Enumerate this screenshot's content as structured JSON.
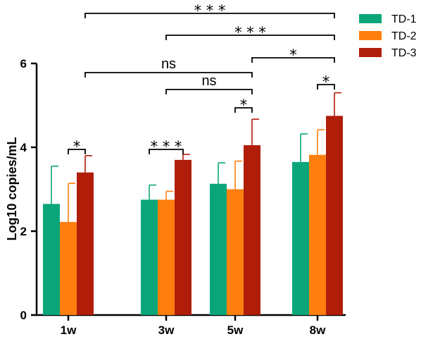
{
  "chart_data": {
    "type": "bar",
    "title": "",
    "xlabel": "",
    "ylabel": "Log10 copies/mL",
    "ylim": [
      0,
      6
    ],
    "yticks": [
      "0",
      "2",
      "4",
      "6"
    ],
    "categories": [
      "1w",
      "3w",
      "5w",
      "8w"
    ],
    "series": [
      {
        "name": "TD-1",
        "color": "#0aa67a",
        "values": [
          2.65,
          2.75,
          3.13,
          3.65
        ],
        "errors": [
          0.9,
          0.35,
          0.5,
          0.67
        ]
      },
      {
        "name": "TD-2",
        "color": "#ff7f0e",
        "values": [
          2.22,
          2.75,
          3.0,
          3.82
        ],
        "errors": [
          0.92,
          0.2,
          0.67,
          0.6
        ]
      },
      {
        "name": "TD-3",
        "color": "#b01e0a",
        "values": [
          3.4,
          3.7,
          4.05,
          4.75
        ],
        "errors": [
          0.4,
          0.13,
          0.62,
          0.55
        ]
      }
    ],
    "legend_position": "top-right",
    "significance": [
      {
        "label": "*",
        "from": {
          "category": 0,
          "series": 1
        },
        "to": {
          "category": 0,
          "series": 2
        }
      },
      {
        "label": "* * *",
        "from": {
          "category": 1,
          "series": 0
        },
        "to": {
          "category": 1,
          "series": 2
        }
      },
      {
        "label": "*",
        "from": {
          "category": 2,
          "series": 1
        },
        "to": {
          "category": 2,
          "series": 2
        }
      },
      {
        "label": "*",
        "from": {
          "category": 3,
          "series": 1
        },
        "to": {
          "category": 3,
          "series": 2
        }
      },
      {
        "label": "ns",
        "from": {
          "category": 1,
          "series": 1
        },
        "to": {
          "category": 2,
          "series": 2
        }
      },
      {
        "label": "ns",
        "from": {
          "category": 0,
          "series": 2
        },
        "to": {
          "category": 2,
          "series": 2
        }
      },
      {
        "label": "*",
        "from": {
          "category": 2,
          "series": 2
        },
        "to": {
          "category": 3,
          "series": 2
        }
      },
      {
        "label": "* * *",
        "from": {
          "category": 1,
          "series": 1
        },
        "to": {
          "category": 3,
          "series": 2
        }
      },
      {
        "label": "* * *",
        "from": {
          "category": 0,
          "series": 2
        },
        "to": {
          "category": 3,
          "series": 2
        }
      }
    ]
  }
}
